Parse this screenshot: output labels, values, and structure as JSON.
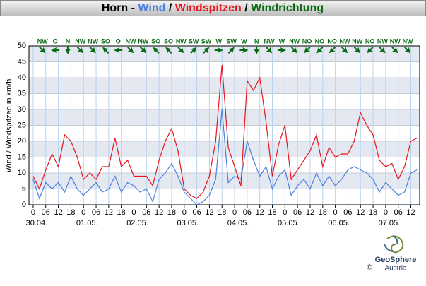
{
  "chart_data": {
    "type": "line",
    "title_prefix": "Horn -",
    "title_sep": "/",
    "direction_title": "Windrichtung",
    "y_label": "Wind / Windspitzen in km/h",
    "x": [
      0,
      3,
      6,
      9,
      12,
      15,
      18,
      21,
      24,
      27,
      30,
      33,
      36,
      39,
      42,
      45,
      48,
      51,
      54,
      57,
      60,
      63,
      66,
      69,
      72,
      75,
      78,
      81,
      84,
      87,
      90,
      93,
      96,
      99,
      102,
      105,
      108,
      111,
      114,
      117,
      120,
      123,
      126,
      129,
      132,
      135,
      138,
      141,
      144,
      147,
      150,
      153,
      156,
      159,
      162,
      165,
      168,
      171,
      174,
      177,
      180,
      183
    ],
    "series": [
      {
        "name": "Wind",
        "color": "#4a7fe0",
        "values": [
          8,
          2,
          7,
          5,
          7,
          4,
          9,
          5,
          3,
          5,
          7,
          4,
          5,
          9,
          4,
          7,
          6,
          4,
          5,
          1,
          8,
          10,
          13,
          9,
          4,
          2,
          0,
          1,
          3,
          8,
          30,
          7,
          9,
          8,
          20,
          14,
          9,
          12,
          5,
          9,
          11,
          3,
          6,
          8,
          5,
          10,
          6,
          9,
          6,
          8,
          11,
          12,
          11,
          10,
          8,
          4,
          7,
          5,
          3,
          4,
          10,
          11
        ]
      },
      {
        "name": "Windspitzen",
        "color": "#e8141c",
        "values": [
          9,
          5,
          11,
          16,
          12,
          22,
          20,
          15,
          8,
          10,
          8,
          12,
          12,
          21,
          12,
          14,
          9,
          9,
          9,
          6,
          14,
          20,
          24,
          17,
          5,
          3,
          2,
          4,
          9,
          20,
          44,
          18,
          12,
          6,
          39,
          36,
          40,
          26,
          9,
          19,
          25,
          8,
          11,
          14,
          17,
          22,
          12,
          18,
          15,
          16,
          16,
          20,
          29,
          25,
          22,
          14,
          12,
          13,
          8,
          12,
          20,
          21
        ]
      }
    ],
    "xlim": [
      -2,
      184.2
    ],
    "xticks": [
      0,
      {
        "value": 6,
        "label": "06"
      },
      12,
      18,
      {
        "value": 24,
        "label": "0"
      },
      {
        "value": 30,
        "label": "06"
      },
      {
        "value": 36,
        "label": "12"
      },
      {
        "value": 42,
        "label": "18"
      },
      {
        "value": 48,
        "label": "0"
      },
      {
        "value": 54,
        "label": "06"
      },
      {
        "value": 60,
        "label": "12"
      },
      {
        "value": 66,
        "label": "18"
      },
      {
        "value": 72,
        "label": "0"
      },
      {
        "value": 78,
        "label": "06"
      },
      {
        "value": 84,
        "label": "12"
      },
      {
        "value": 90,
        "label": "18"
      },
      {
        "value": 96,
        "label": "0"
      },
      {
        "value": 102,
        "label": "06"
      },
      {
        "value": 108,
        "label": "12"
      },
      {
        "value": 114,
        "label": "18"
      },
      {
        "value": 120,
        "label": "0"
      },
      {
        "value": 126,
        "label": "06"
      },
      {
        "value": 132,
        "label": "12"
      },
      {
        "value": 138,
        "label": "18"
      },
      {
        "value": 144,
        "label": "0"
      },
      {
        "value": 150,
        "label": "06"
      },
      {
        "value": 156,
        "label": "12"
      },
      {
        "value": 162,
        "label": "18"
      },
      {
        "value": 168,
        "label": "0"
      },
      {
        "value": 174,
        "label": "06"
      },
      {
        "value": 180,
        "label": "12"
      }
    ],
    "date_labels": [
      {
        "value": 0,
        "label": "30.04."
      },
      {
        "value": 24,
        "label": "01.05."
      },
      {
        "value": 48,
        "label": "02.05."
      },
      {
        "value": 72,
        "label": "03.05."
      },
      {
        "value": 96,
        "label": "04.05."
      },
      {
        "value": 120,
        "label": "05.05."
      },
      {
        "value": 144,
        "label": "06.05."
      },
      {
        "value": 168,
        "label": "07.05."
      }
    ],
    "ylim": [
      0,
      50
    ],
    "yticks": [
      0,
      5,
      10,
      15,
      20,
      25,
      30,
      35,
      40,
      45,
      50
    ],
    "grid": true,
    "direction_color": "#0a6a14",
    "direction_hours": [
      4.5,
      10.5,
      16.5,
      22.5,
      28.5,
      34.5,
      40.5,
      46.5,
      52.5,
      58.5,
      64.5,
      70.5,
      76.5,
      82.5,
      88.5,
      94.5,
      100.5,
      106.5,
      112.5,
      118.5,
      124.5,
      130.5,
      136.5,
      142.5,
      148.5,
      154.5,
      160.5,
      166.5,
      172.5,
      178.5
    ],
    "directions": [
      "NW",
      "O",
      "N",
      "NW",
      "NW",
      "SO",
      "O",
      "NW",
      "NW",
      "SO",
      "SO",
      "NW",
      "SW",
      "SW",
      "W",
      "SW",
      "W",
      "N",
      "NW",
      "W",
      "NW",
      "NO",
      "NO",
      "NO",
      "NW",
      "NW",
      "NO",
      "NW",
      "NW",
      "NW"
    ]
  },
  "logo": {
    "name": "GeoSphere",
    "sub": "Austria",
    "copyright": "©"
  }
}
